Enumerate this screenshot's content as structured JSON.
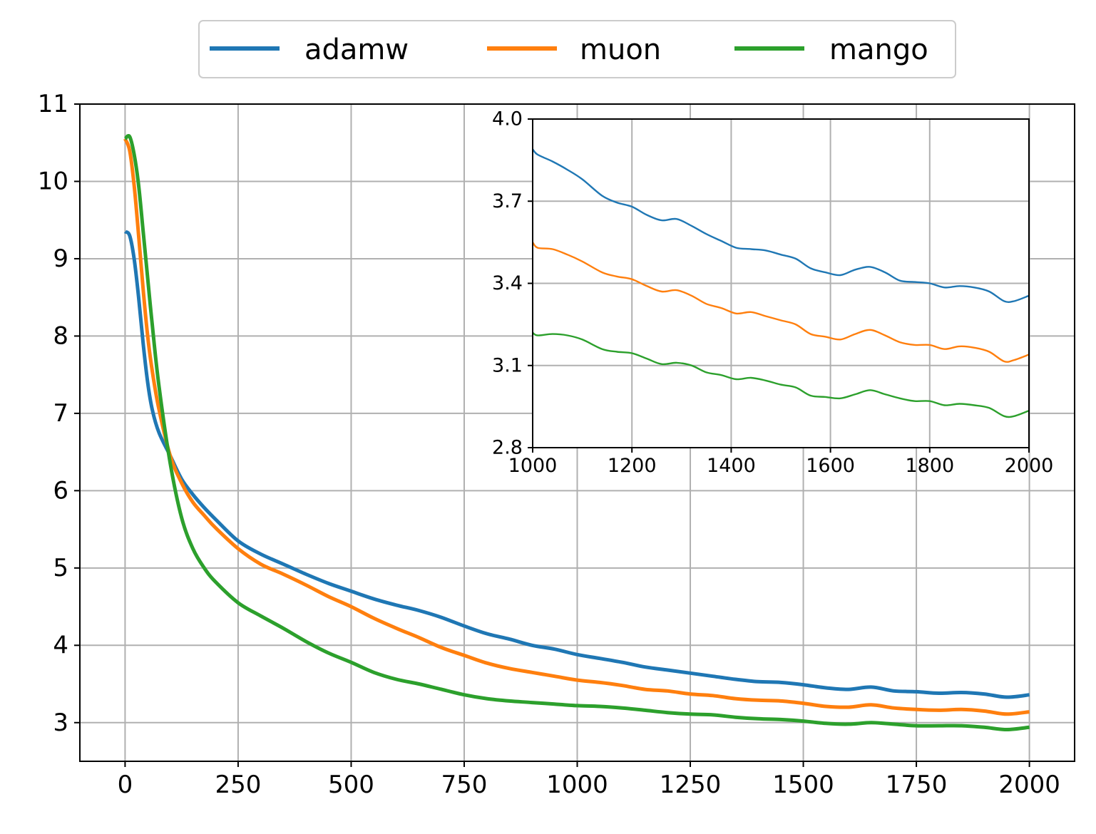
{
  "colors": {
    "adamw": "#1f77b4",
    "muon": "#ff7f0e",
    "mango": "#2ca02c",
    "grid": "#b0b0b0"
  },
  "legend": {
    "placement": "top-center, above plot",
    "items": [
      "adamw",
      "muon",
      "mango"
    ]
  },
  "chart_data": [
    {
      "id": "main",
      "type": "line",
      "title": "",
      "xlabel": "",
      "ylabel": "",
      "xlim": [
        -100,
        2100
      ],
      "ylim": [
        2.5,
        11
      ],
      "xticks": [
        0,
        250,
        500,
        750,
        1000,
        1250,
        1500,
        1750,
        2000
      ],
      "yticks": [
        3,
        4,
        5,
        6,
        7,
        8,
        9,
        10,
        11
      ],
      "grid": true,
      "series": [
        {
          "name": "adamw",
          "x": [
            0,
            10,
            20,
            30,
            40,
            50,
            60,
            75,
            100,
            125,
            150,
            175,
            200,
            250,
            300,
            350,
            400,
            450,
            500,
            550,
            600,
            650,
            700,
            750,
            800,
            850,
            900,
            950,
            1000,
            1050,
            1100,
            1150,
            1200,
            1250,
            1300,
            1350,
            1400,
            1450,
            1500,
            1550,
            1600,
            1650,
            1700,
            1750,
            1800,
            1850,
            1900,
            1950,
            2000
          ],
          "y": [
            9.35,
            9.3,
            9.0,
            8.5,
            7.9,
            7.4,
            7.05,
            6.75,
            6.45,
            6.15,
            5.95,
            5.78,
            5.63,
            5.35,
            5.18,
            5.05,
            4.92,
            4.8,
            4.7,
            4.6,
            4.52,
            4.45,
            4.36,
            4.25,
            4.15,
            4.08,
            4.0,
            3.95,
            3.88,
            3.83,
            3.78,
            3.72,
            3.68,
            3.64,
            3.6,
            3.56,
            3.53,
            3.52,
            3.49,
            3.45,
            3.43,
            3.46,
            3.41,
            3.4,
            3.38,
            3.39,
            3.37,
            3.33,
            3.36
          ]
        },
        {
          "name": "muon",
          "x": [
            0,
            10,
            20,
            30,
            40,
            50,
            60,
            75,
            100,
            125,
            150,
            175,
            200,
            250,
            300,
            350,
            400,
            450,
            500,
            550,
            600,
            650,
            700,
            750,
            800,
            850,
            900,
            950,
            1000,
            1050,
            1100,
            1150,
            1200,
            1250,
            1300,
            1350,
            1400,
            1450,
            1500,
            1550,
            1600,
            1650,
            1700,
            1750,
            1800,
            1850,
            1900,
            1950,
            2000
          ],
          "y": [
            10.55,
            10.4,
            9.95,
            9.3,
            8.6,
            8.0,
            7.55,
            7.05,
            6.45,
            6.1,
            5.85,
            5.68,
            5.52,
            5.25,
            5.05,
            4.92,
            4.78,
            4.63,
            4.5,
            4.35,
            4.22,
            4.1,
            3.97,
            3.87,
            3.77,
            3.7,
            3.65,
            3.6,
            3.55,
            3.52,
            3.48,
            3.43,
            3.41,
            3.37,
            3.35,
            3.31,
            3.29,
            3.28,
            3.25,
            3.21,
            3.2,
            3.23,
            3.19,
            3.17,
            3.16,
            3.17,
            3.15,
            3.11,
            3.14
          ]
        },
        {
          "name": "mango",
          "x": [
            0,
            10,
            20,
            30,
            40,
            50,
            60,
            75,
            100,
            125,
            150,
            175,
            200,
            250,
            300,
            350,
            400,
            450,
            500,
            550,
            600,
            650,
            700,
            750,
            800,
            850,
            900,
            950,
            1000,
            1050,
            1100,
            1150,
            1200,
            1250,
            1300,
            1350,
            1400,
            1450,
            1500,
            1550,
            1600,
            1650,
            1700,
            1750,
            1800,
            1850,
            1900,
            1950,
            2000
          ],
          "y": [
            10.55,
            10.58,
            10.35,
            9.95,
            9.35,
            8.75,
            8.15,
            7.35,
            6.35,
            5.65,
            5.25,
            5.0,
            4.82,
            4.55,
            4.38,
            4.22,
            4.05,
            3.9,
            3.78,
            3.65,
            3.56,
            3.5,
            3.43,
            3.36,
            3.31,
            3.28,
            3.26,
            3.24,
            3.22,
            3.21,
            3.19,
            3.16,
            3.13,
            3.11,
            3.1,
            3.07,
            3.05,
            3.04,
            3.02,
            2.99,
            2.98,
            3.0,
            2.98,
            2.96,
            2.96,
            2.96,
            2.94,
            2.91,
            2.94
          ]
        }
      ]
    },
    {
      "id": "inset",
      "type": "line",
      "title": "",
      "xlim": [
        1000,
        2000
      ],
      "ylim": [
        2.8,
        4.0
      ],
      "xticks": [
        1000,
        1200,
        1400,
        1600,
        1800,
        2000
      ],
      "yticks": [
        2.8,
        3.1,
        3.4,
        3.7,
        4.0
      ],
      "ytick_labels": [
        "2.8",
        "3.1",
        "3.4",
        "3.7",
        "4.0"
      ],
      "grid": true,
      "series": [
        {
          "name": "adamw",
          "x": [
            1000,
            1010,
            1040,
            1070,
            1100,
            1140,
            1170,
            1200,
            1230,
            1260,
            1290,
            1320,
            1350,
            1380,
            1410,
            1440,
            1470,
            1500,
            1530,
            1560,
            1590,
            1620,
            1650,
            1680,
            1710,
            1740,
            1770,
            1800,
            1830,
            1860,
            1890,
            1920,
            1950,
            1970,
            2000
          ],
          "y": [
            3.89,
            3.87,
            3.845,
            3.815,
            3.78,
            3.72,
            3.695,
            3.68,
            3.65,
            3.63,
            3.635,
            3.61,
            3.58,
            3.555,
            3.53,
            3.525,
            3.52,
            3.505,
            3.49,
            3.455,
            3.44,
            3.43,
            3.45,
            3.46,
            3.44,
            3.41,
            3.405,
            3.4,
            3.385,
            3.39,
            3.385,
            3.37,
            3.335,
            3.335,
            3.355
          ]
        },
        {
          "name": "muon",
          "x": [
            1000,
            1010,
            1040,
            1070,
            1100,
            1140,
            1170,
            1200,
            1230,
            1260,
            1290,
            1320,
            1350,
            1380,
            1410,
            1440,
            1470,
            1500,
            1530,
            1560,
            1590,
            1620,
            1650,
            1680,
            1710,
            1740,
            1770,
            1800,
            1830,
            1860,
            1890,
            1920,
            1950,
            1970,
            2000
          ],
          "y": [
            3.55,
            3.53,
            3.525,
            3.505,
            3.48,
            3.44,
            3.425,
            3.415,
            3.39,
            3.37,
            3.375,
            3.355,
            3.325,
            3.31,
            3.29,
            3.295,
            3.28,
            3.265,
            3.25,
            3.215,
            3.205,
            3.195,
            3.215,
            3.23,
            3.21,
            3.185,
            3.175,
            3.175,
            3.16,
            3.17,
            3.165,
            3.15,
            3.115,
            3.12,
            3.14
          ]
        },
        {
          "name": "mango",
          "x": [
            1000,
            1010,
            1040,
            1070,
            1100,
            1140,
            1170,
            1200,
            1230,
            1260,
            1290,
            1320,
            1350,
            1380,
            1410,
            1440,
            1470,
            1500,
            1530,
            1560,
            1590,
            1620,
            1650,
            1680,
            1710,
            1740,
            1770,
            1800,
            1830,
            1860,
            1890,
            1920,
            1950,
            1970,
            2000
          ],
          "y": [
            3.22,
            3.21,
            3.215,
            3.21,
            3.195,
            3.16,
            3.15,
            3.145,
            3.125,
            3.105,
            3.11,
            3.1,
            3.075,
            3.065,
            3.05,
            3.055,
            3.045,
            3.03,
            3.02,
            2.99,
            2.985,
            2.98,
            2.995,
            3.01,
            2.995,
            2.98,
            2.97,
            2.97,
            2.955,
            2.96,
            2.955,
            2.945,
            2.915,
            2.915,
            2.935
          ]
        }
      ]
    }
  ]
}
